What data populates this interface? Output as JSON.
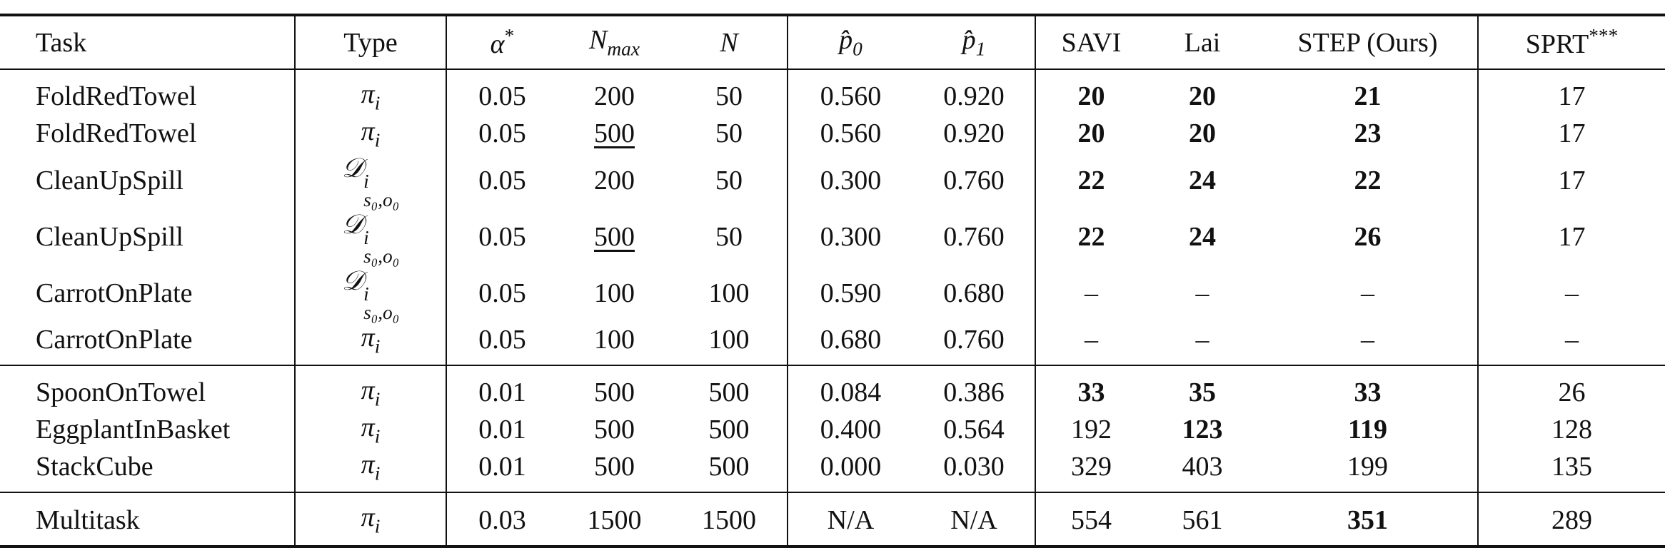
{
  "header": [
    "Task",
    "Type",
    {
      "symbol": "α",
      "sup": "*"
    },
    {
      "symbol": "N",
      "sub": "max"
    },
    {
      "symbol": "N"
    },
    {
      "symbol": "p̂",
      "sub": "0"
    },
    {
      "symbol": "p̂",
      "sub": "1"
    },
    "SAVI",
    "Lai",
    "STEP (Ours)",
    {
      "text": "SPRT",
      "sup": "***"
    }
  ],
  "groups": [
    {
      "rows": [
        {
          "task": "FoldRedTowel",
          "type": {
            "symbol": "π",
            "sub": "i"
          },
          "alpha": "0.05",
          "nmax": "200",
          "n": "50",
          "p0": "0.560",
          "p1": "0.920",
          "savi": "20",
          "lai": "20",
          "step": "21",
          "sprt": "17",
          "bold": [
            "savi",
            "lai",
            "step"
          ]
        },
        {
          "task": "FoldRedTowel",
          "type": {
            "symbol": "π",
            "sub": "i"
          },
          "alpha": "0.05",
          "nmax": "500",
          "n": "50",
          "p0": "0.560",
          "p1": "0.920",
          "savi": "20",
          "lai": "20",
          "step": "23",
          "sprt": "17",
          "bold": [
            "savi",
            "lai",
            "step"
          ],
          "underline": [
            "nmax"
          ]
        },
        {
          "task": "CleanUpSpill",
          "type": {
            "symbol": "𝒟",
            "sup": "i",
            "sub": "s₀,o₀"
          },
          "alpha": "0.05",
          "nmax": "200",
          "n": "50",
          "p0": "0.300",
          "p1": "0.760",
          "savi": "22",
          "lai": "24",
          "step": "22",
          "sprt": "17",
          "bold": [
            "savi",
            "lai",
            "step"
          ]
        },
        {
          "task": "CleanUpSpill",
          "type": {
            "symbol": "𝒟",
            "sup": "i",
            "sub": "s₀,o₀"
          },
          "alpha": "0.05",
          "nmax": "500",
          "n": "50",
          "p0": "0.300",
          "p1": "0.760",
          "savi": "22",
          "lai": "24",
          "step": "26",
          "sprt": "17",
          "bold": [
            "savi",
            "lai",
            "step"
          ],
          "underline": [
            "nmax"
          ]
        },
        {
          "task": "CarrotOnPlate",
          "type": {
            "symbol": "𝒟",
            "sup": "i",
            "sub": "s₀,o₀"
          },
          "alpha": "0.05",
          "nmax": "100",
          "n": "100",
          "p0": "0.590",
          "p1": "0.680",
          "savi": "–",
          "lai": "–",
          "step": "–",
          "sprt": "–"
        },
        {
          "task": "CarrotOnPlate",
          "type": {
            "symbol": "π",
            "sub": "i"
          },
          "alpha": "0.05",
          "nmax": "100",
          "n": "100",
          "p0": "0.680",
          "p1": "0.760",
          "savi": "–",
          "lai": "–",
          "step": "–",
          "sprt": "–"
        }
      ]
    },
    {
      "rows": [
        {
          "task": "SpoonOnTowel",
          "type": {
            "symbol": "π",
            "sub": "i"
          },
          "alpha": "0.01",
          "nmax": "500",
          "n": "500",
          "p0": "0.084",
          "p1": "0.386",
          "savi": "33",
          "lai": "35",
          "step": "33",
          "sprt": "26",
          "bold": [
            "savi",
            "lai",
            "step"
          ]
        },
        {
          "task": "EggplantInBasket",
          "type": {
            "symbol": "π",
            "sub": "i"
          },
          "alpha": "0.01",
          "nmax": "500",
          "n": "500",
          "p0": "0.400",
          "p1": "0.564",
          "savi": "192",
          "lai": "123",
          "step": "119",
          "sprt": "128",
          "bold": [
            "lai",
            "step"
          ]
        },
        {
          "task": "StackCube",
          "type": {
            "symbol": "π",
            "sub": "i"
          },
          "alpha": "0.01",
          "nmax": "500",
          "n": "500",
          "p0": "0.000",
          "p1": "0.030",
          "savi": "329",
          "lai": "403",
          "step": "199",
          "sprt": "135"
        }
      ]
    },
    {
      "rows": [
        {
          "task": "Multitask",
          "type": {
            "symbol": "π",
            "sub": "i"
          },
          "alpha": "0.03",
          "nmax": "1500",
          "n": "1500",
          "p0": "N/A",
          "p1": "N/A",
          "savi": "554",
          "lai": "561",
          "step": "351",
          "sprt": "289",
          "bold": [
            "step"
          ]
        }
      ]
    }
  ]
}
